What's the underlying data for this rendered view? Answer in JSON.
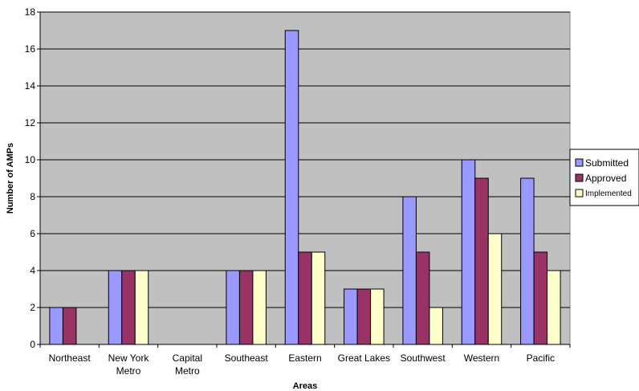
{
  "chart_data": {
    "type": "bar",
    "title": "",
    "xlabel": "Areas",
    "ylabel": "Number of AMPs",
    "ylim": [
      0,
      18
    ],
    "yticks": [
      0,
      2,
      4,
      6,
      8,
      10,
      12,
      14,
      16,
      18
    ],
    "grid": true,
    "legend_position": "right",
    "categories": [
      [
        "Northeast"
      ],
      [
        "New York",
        "Metro"
      ],
      [
        "Capital",
        "Metro"
      ],
      [
        "Southeast"
      ],
      [
        "Eastern"
      ],
      [
        "Great Lakes"
      ],
      [
        "Southwest"
      ],
      [
        "Western"
      ],
      [
        "Pacific"
      ]
    ],
    "series": [
      {
        "name": "Submitted",
        "color": "#9999ff",
        "values": [
          2,
          4,
          0,
          4,
          17,
          3,
          8,
          10,
          9
        ]
      },
      {
        "name": "Approved",
        "color": "#993366",
        "values": [
          2,
          4,
          0,
          4,
          5,
          3,
          5,
          9,
          5
        ]
      },
      {
        "name": "Implemented",
        "color": "#ffffcc",
        "values": [
          0,
          4,
          0,
          4,
          5,
          3,
          2,
          6,
          4
        ]
      }
    ],
    "plot_background": "#c0c0c0"
  }
}
